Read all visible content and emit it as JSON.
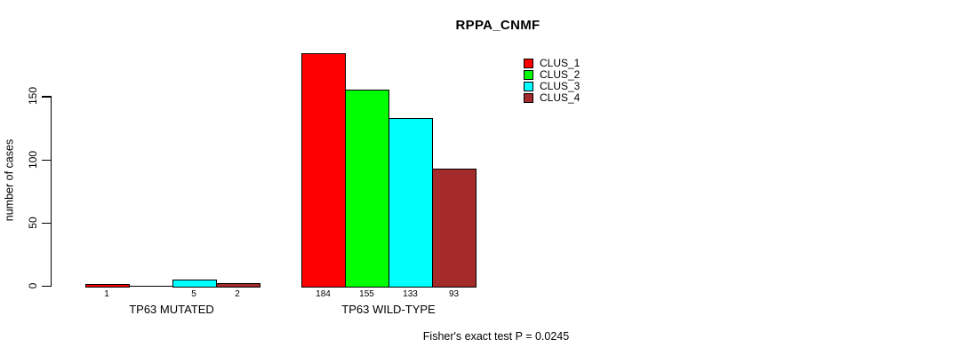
{
  "chart_data": {
    "type": "bar",
    "title": "RPPA_CNMF",
    "ylabel": "number of cases",
    "xlabel": "",
    "groups": [
      "TP63 MUTATED",
      "TP63 WILD-TYPE"
    ],
    "series": [
      {
        "name": "CLUS_1",
        "color": "#FF0000",
        "values": [
          1,
          184
        ]
      },
      {
        "name": "CLUS_2",
        "color": "#00FF00",
        "values": [
          0,
          155
        ]
      },
      {
        "name": "CLUS_3",
        "color": "#00FFFF",
        "values": [
          5,
          133
        ]
      },
      {
        "name": "CLUS_4",
        "color": "#A52A2A",
        "values": [
          2,
          93
        ]
      }
    ],
    "yticks": [
      0,
      50,
      100,
      150
    ],
    "ylim": [
      0,
      188
    ],
    "grid": false,
    "legend_position": "top-right",
    "bar_value_labels": true,
    "zero_value_labels_hidden": true,
    "annotation": "Fisher's exact test P = 0.0245"
  }
}
